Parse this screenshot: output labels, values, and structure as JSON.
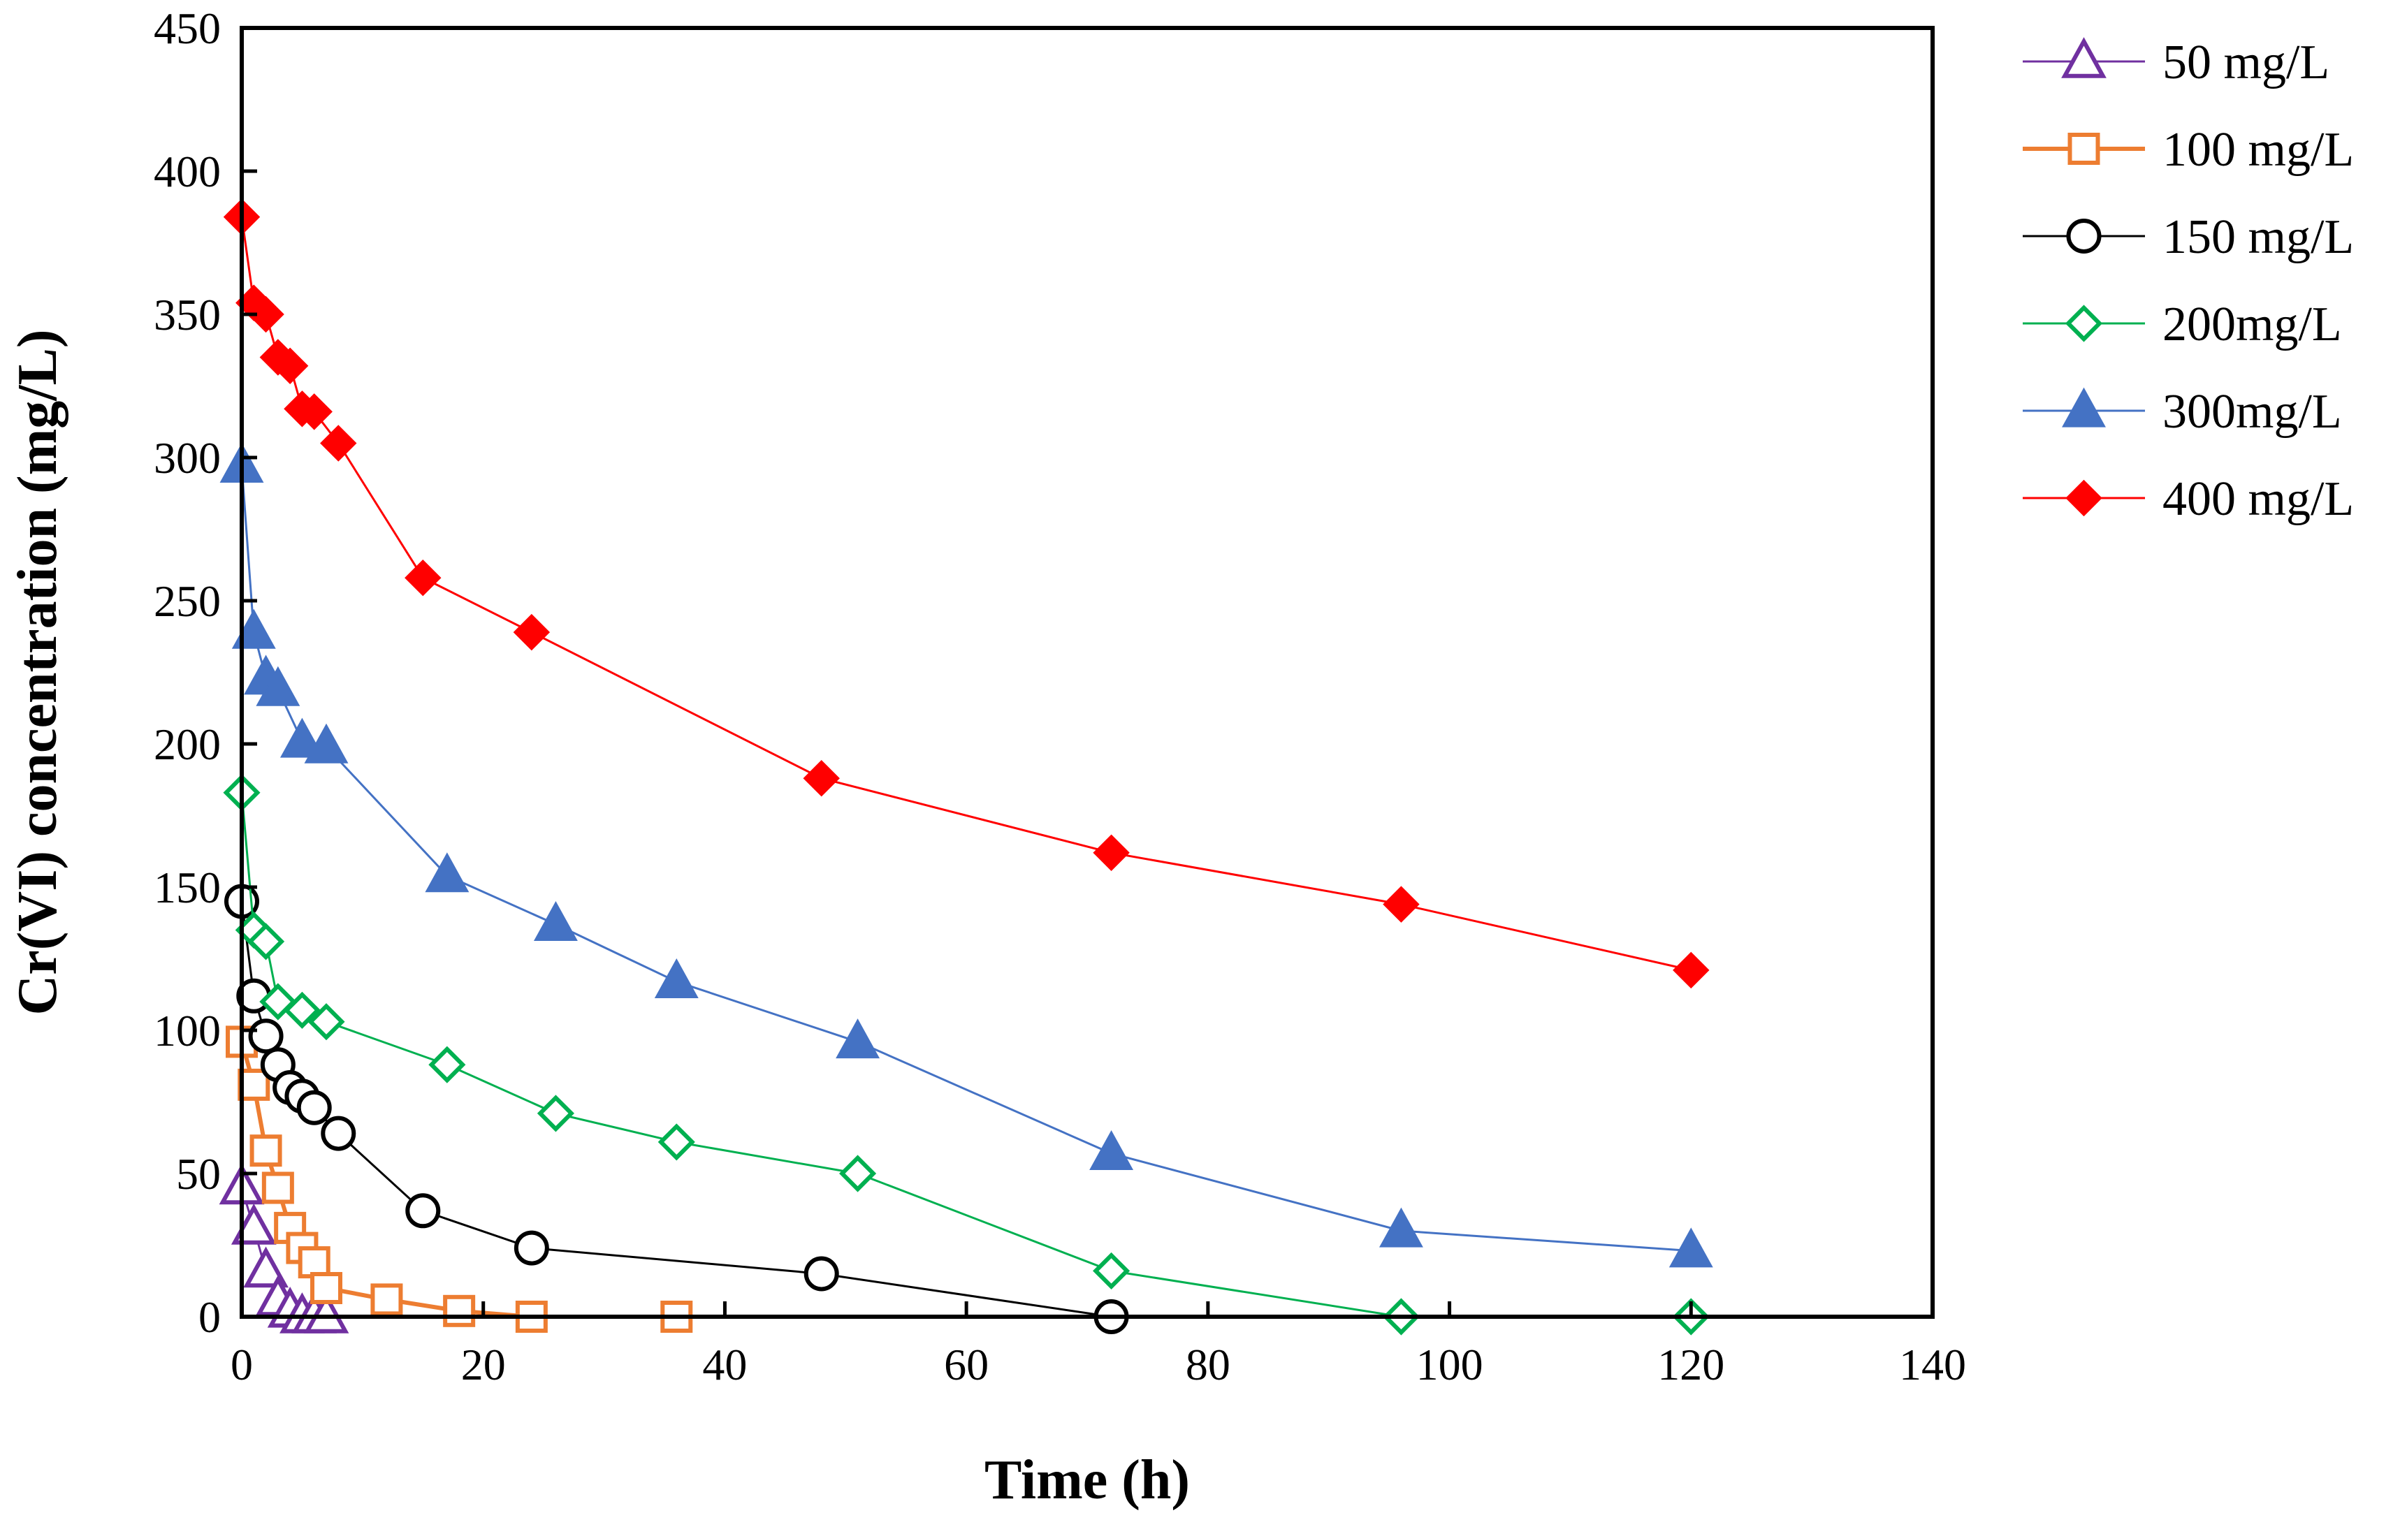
{
  "chart_data": {
    "type": "line",
    "title": "",
    "xlabel": "Time (h)",
    "ylabel": "Cr(VI) concentration (mg/L)",
    "xlim": [
      0,
      140
    ],
    "ylim": [
      0,
      450
    ],
    "xticks": [
      0,
      20,
      40,
      60,
      80,
      100,
      120,
      140
    ],
    "yticks": [
      0,
      50,
      100,
      150,
      200,
      250,
      300,
      350,
      400,
      450
    ],
    "xtick_labels": [
      "0",
      "20",
      "40",
      "60",
      "80",
      "100",
      "120",
      "140"
    ],
    "ytick_labels": [
      "0",
      "50",
      "100",
      "150",
      "200",
      "250",
      "300",
      "350",
      "400",
      "450"
    ],
    "grid": false,
    "legend_position": "right",
    "series": [
      {
        "name": "50 mg/L",
        "color": "#7030A0",
        "marker": "triangle-open",
        "x": [
          0,
          1,
          2,
          3,
          4,
          5,
          6,
          7
        ],
        "y": [
          45,
          31,
          16,
          6,
          2,
          0,
          0,
          0
        ]
      },
      {
        "name": "100 mg/L",
        "color": "#ED7D31",
        "marker": "square-open",
        "x": [
          0,
          1,
          2,
          3,
          4,
          5,
          6,
          7,
          12,
          18,
          24,
          36
        ],
        "y": [
          96,
          81,
          58,
          45,
          31,
          24,
          19,
          10,
          6,
          2,
          0,
          0
        ]
      },
      {
        "name": "150 mg/L",
        "color": "#000000",
        "marker": "circle-open",
        "x": [
          0,
          1,
          2,
          3,
          4,
          5,
          6,
          8,
          15,
          24,
          48,
          72
        ],
        "y": [
          145,
          112,
          98,
          88,
          80,
          77,
          73,
          64,
          37,
          24,
          15,
          0
        ]
      },
      {
        "name": "200mg/L",
        "color": "#00B050",
        "marker": "diamond-open",
        "x": [
          0,
          1,
          2,
          3,
          5,
          7,
          17,
          26,
          36,
          51,
          72,
          96,
          120
        ],
        "y": [
          183,
          135,
          131,
          110,
          107,
          103,
          88,
          71,
          61,
          50,
          16,
          0,
          0
        ]
      },
      {
        "name": "300mg/L",
        "color": "#4472C4",
        "marker": "triangle-filled",
        "x": [
          0,
          1,
          2,
          3,
          5,
          7,
          17,
          26,
          36,
          51,
          72,
          96,
          120
        ],
        "y": [
          297,
          239,
          223,
          219,
          201,
          199,
          154,
          137,
          117,
          96,
          57,
          30,
          23
        ]
      },
      {
        "name": "400 mg/L",
        "color": "#FF0000",
        "marker": "diamond-filled",
        "x": [
          0,
          1,
          2,
          3,
          4,
          5,
          6,
          8,
          15,
          24,
          48,
          72,
          96,
          120
        ],
        "y": [
          384,
          354,
          350,
          335,
          332,
          317,
          316,
          305,
          258,
          239,
          188,
          162,
          144,
          121
        ]
      }
    ]
  }
}
